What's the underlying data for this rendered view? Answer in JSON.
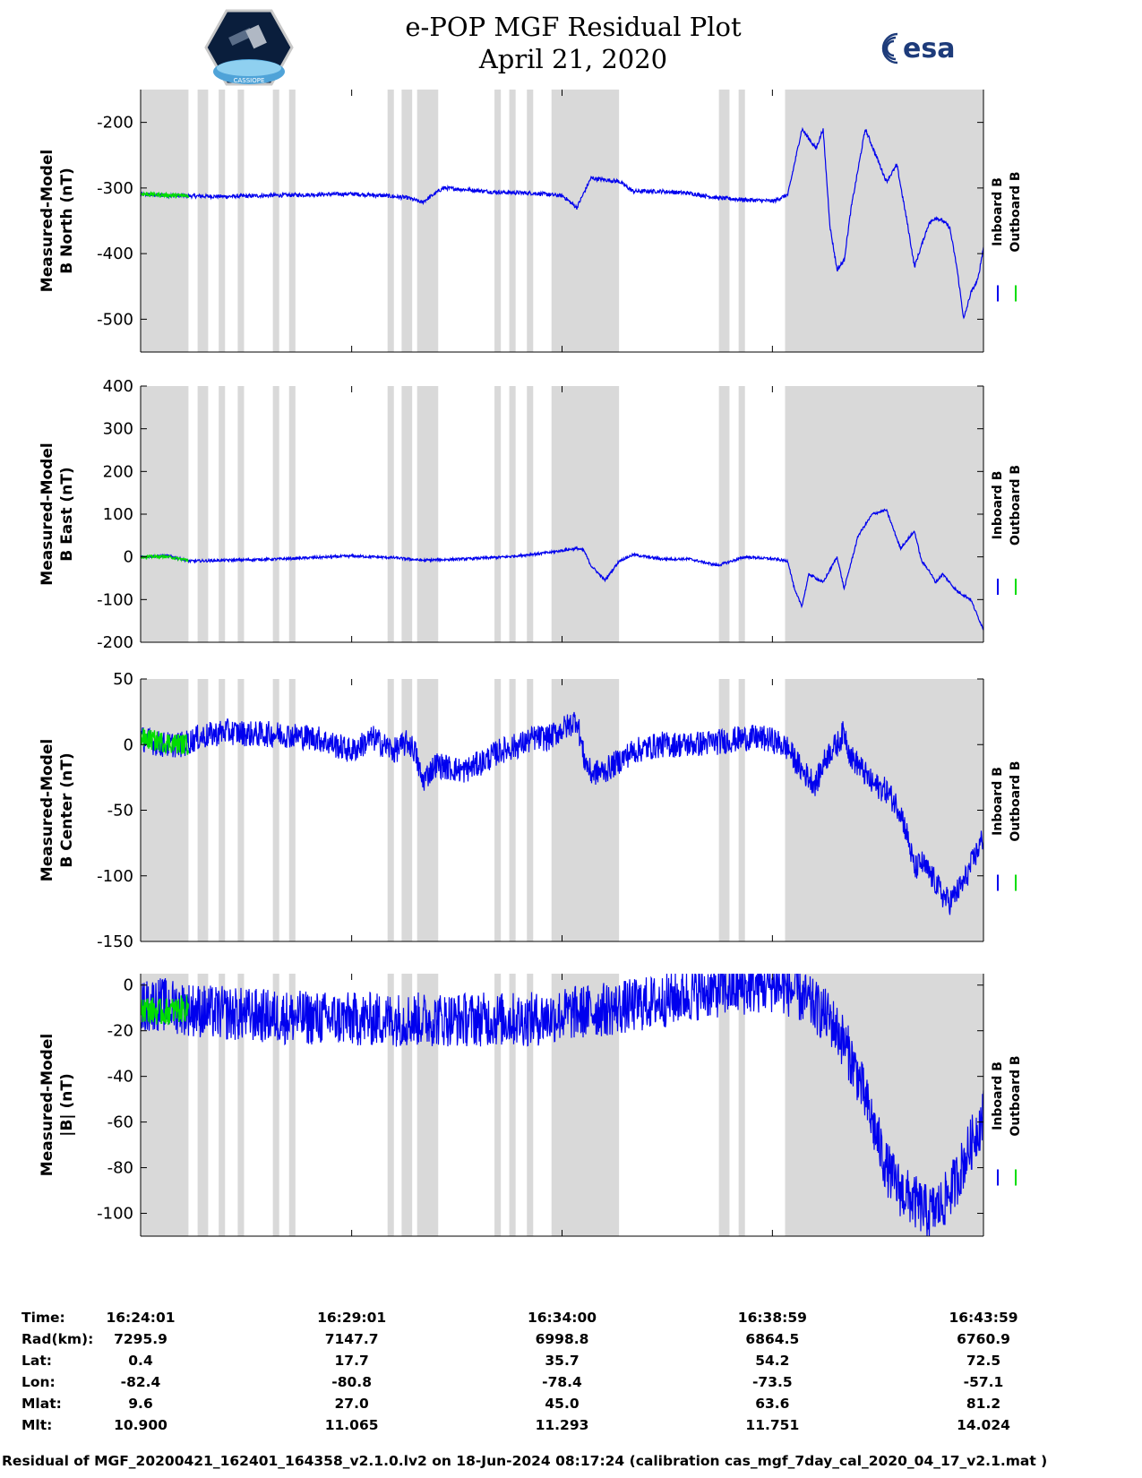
{
  "header": {
    "title_line1": "e-POP MGF Residual Plot",
    "title_line2": "April 21, 2020",
    "logo_left": "CASSIOPE",
    "logo_right": "esa"
  },
  "colors": {
    "inboard": "#0000ee",
    "outboard": "#00dd00",
    "shading": "#d9d9d9",
    "axis": "#000000"
  },
  "legend": {
    "inboard": "Inboard B",
    "outboard": "Outboard B"
  },
  "time_axis": {
    "start_s": 0,
    "end_s": 1198,
    "tick_times_s": [
      0,
      300,
      599,
      898,
      1198
    ]
  },
  "shaded_intervals_s": [
    [
      0,
      68
    ],
    [
      81,
      96
    ],
    [
      111,
      120
    ],
    [
      138,
      147
    ],
    [
      188,
      197
    ],
    [
      211,
      220
    ],
    [
      351,
      360
    ],
    [
      371,
      386
    ],
    [
      393,
      423
    ],
    [
      503,
      512
    ],
    [
      524,
      533
    ],
    [
      549,
      558
    ],
    [
      584,
      680
    ],
    [
      822,
      837
    ],
    [
      850,
      859
    ],
    [
      916,
      1198
    ]
  ],
  "chart_data": [
    {
      "type": "line",
      "ylabel_line1": "Measured-Model",
      "ylabel_line2": "B North (nT)",
      "ylim": [
        -550,
        -150
      ],
      "yticks": [
        -200,
        -300,
        -400,
        -500
      ],
      "ytick_labels": [
        "-200",
        "-300",
        "-400",
        "-500"
      ],
      "series": [
        {
          "name": "Inboard B",
          "noise": 3,
          "x": [
            0,
            60,
            120,
            200,
            300,
            350,
            380,
            400,
            430,
            470,
            500,
            560,
            600,
            620,
            640,
            680,
            700,
            740,
            780,
            820,
            860,
            900,
            920,
            930,
            940,
            960,
            970,
            980,
            990,
            1000,
            1010,
            1030,
            1045,
            1060,
            1075,
            1090,
            1100,
            1120,
            1130,
            1140,
            1150,
            1160,
            1170,
            1180,
            1190,
            1198
          ],
          "y": [
            -310,
            -312,
            -313,
            -311,
            -309,
            -312,
            -315,
            -322,
            -300,
            -303,
            -306,
            -308,
            -312,
            -330,
            -285,
            -290,
            -305,
            -305,
            -308,
            -315,
            -318,
            -320,
            -310,
            -260,
            -210,
            -240,
            -210,
            -360,
            -425,
            -410,
            -330,
            -210,
            -250,
            -290,
            -265,
            -355,
            -420,
            -355,
            -345,
            -350,
            -360,
            -420,
            -500,
            -460,
            -440,
            -390
          ]
        },
        {
          "name": "Outboard B",
          "noise": 3,
          "x": [
            0,
            40,
            68
          ],
          "y": [
            -309,
            -311,
            -312
          ]
        }
      ]
    },
    {
      "type": "line",
      "ylabel_line1": "Measured-Model",
      "ylabel_line2": "B East (nT)",
      "ylim": [
        -200,
        400
      ],
      "yticks": [
        400,
        300,
        200,
        100,
        0,
        -100,
        -200
      ],
      "ytick_labels": [
        "400",
        "300",
        "200",
        "100",
        "0",
        "-100",
        "-200"
      ],
      "series": [
        {
          "name": "Inboard B",
          "noise": 3,
          "x": [
            0,
            40,
            70,
            120,
            200,
            300,
            360,
            400,
            460,
            520,
            580,
            600,
            620,
            630,
            640,
            660,
            680,
            700,
            740,
            780,
            820,
            860,
            900,
            920,
            930,
            940,
            950,
            970,
            990,
            1000,
            1020,
            1040,
            1060,
            1080,
            1090,
            1100,
            1110,
            1120,
            1130,
            1140,
            1160,
            1180,
            1190,
            1198
          ],
          "y": [
            0,
            2,
            -10,
            -8,
            -5,
            2,
            -2,
            -8,
            -5,
            0,
            10,
            15,
            20,
            15,
            -20,
            -55,
            -10,
            5,
            -5,
            -5,
            -20,
            0,
            -5,
            -10,
            -80,
            -115,
            -40,
            -60,
            0,
            -75,
            50,
            100,
            110,
            20,
            40,
            60,
            -10,
            -30,
            -60,
            -40,
            -80,
            -100,
            -140,
            -170
          ]
        },
        {
          "name": "Outboard B",
          "noise": 3,
          "x": [
            0,
            35,
            68
          ],
          "y": [
            0,
            1,
            -8
          ]
        }
      ]
    },
    {
      "type": "line",
      "ylabel_line1": "Measured-Model",
      "ylabel_line2": "B Center (nT)",
      "ylim": [
        -150,
        50
      ],
      "yticks": [
        50,
        0,
        -50,
        -100,
        -150
      ],
      "ytick_labels": [
        "50",
        "0",
        "-50",
        "-100",
        "-150"
      ],
      "series": [
        {
          "name": "Inboard B",
          "noise": 10,
          "x": [
            0,
            30,
            60,
            80,
            120,
            160,
            200,
            250,
            300,
            330,
            360,
            380,
            390,
            400,
            420,
            440,
            460,
            490,
            510,
            540,
            560,
            580,
            600,
            610,
            620,
            630,
            640,
            660,
            700,
            740,
            780,
            820,
            860,
            880,
            900,
            920,
            940,
            960,
            970,
            980,
            990,
            1000,
            1010,
            1020,
            1040,
            1060,
            1080,
            1090,
            1100,
            1110,
            1130,
            1140,
            1150,
            1170,
            1190,
            1198
          ],
          "y": [
            5,
            0,
            0,
            5,
            10,
            8,
            8,
            5,
            -5,
            5,
            -5,
            2,
            -5,
            -28,
            -15,
            -18,
            -20,
            -12,
            -5,
            0,
            5,
            5,
            12,
            15,
            20,
            -10,
            -22,
            -20,
            -5,
            0,
            0,
            2,
            5,
            5,
            3,
            -3,
            -20,
            -30,
            -15,
            -5,
            0,
            10,
            -10,
            -15,
            -30,
            -35,
            -50,
            -70,
            -95,
            -90,
            -105,
            -115,
            -120,
            -105,
            -80,
            -70
          ]
        },
        {
          "name": "Outboard B",
          "noise": 8,
          "x": [
            0,
            30,
            68
          ],
          "y": [
            5,
            2,
            0
          ]
        }
      ]
    },
    {
      "type": "line",
      "ylabel_line1": "Measured-Model",
      "ylabel_line2": "|B| (nT)",
      "ylim": [
        -110,
        5
      ],
      "yticks": [
        0,
        -20,
        -40,
        -60,
        -80,
        -100
      ],
      "ytick_labels": [
        "0",
        "-20",
        "-40",
        "-60",
        "-80",
        "-100"
      ],
      "series": [
        {
          "name": "Inboard B",
          "noise": 12,
          "x": [
            0,
            20,
            60,
            100,
            200,
            300,
            400,
            480,
            560,
            620,
            680,
            740,
            800,
            840,
            900,
            930,
            960,
            980,
            1000,
            1020,
            1040,
            1060,
            1080,
            1100,
            1120,
            1140,
            1160,
            1180,
            1198
          ],
          "y": [
            -10,
            -8,
            -10,
            -12,
            -14,
            -15,
            -15,
            -15,
            -15,
            -12,
            -10,
            -7,
            -3,
            -2,
            0,
            -3,
            -10,
            -15,
            -25,
            -40,
            -60,
            -80,
            -90,
            -95,
            -100,
            -96,
            -85,
            -70,
            -57
          ]
        },
        {
          "name": "Outboard B",
          "noise": 6,
          "x": [
            0,
            30,
            68
          ],
          "y": [
            -10,
            -12,
            -10
          ]
        }
      ]
    }
  ],
  "footer": {
    "rows": [
      {
        "label": "Time:",
        "values": [
          "16:24:01",
          "16:29:01",
          "16:34:00",
          "16:38:59",
          "16:43:59"
        ]
      },
      {
        "label": "Rad(km):",
        "values": [
          "7295.9",
          "7147.7",
          "6998.8",
          "6864.5",
          "6760.9"
        ]
      },
      {
        "label": "Lat:",
        "values": [
          "0.4",
          "17.7",
          "35.7",
          "54.2",
          "72.5"
        ]
      },
      {
        "label": "Lon:",
        "values": [
          "-82.4",
          "-80.8",
          "-78.4",
          "-73.5",
          "-57.1"
        ]
      },
      {
        "label": "Mlat:",
        "values": [
          "9.6",
          "27.0",
          "45.0",
          "63.6",
          "81.2"
        ]
      },
      {
        "label": "Mlt:",
        "values": [
          "10.900",
          "11.065",
          "11.293",
          "11.751",
          "14.024"
        ]
      }
    ],
    "caption": "Residual of MGF_20200421_162401_164358_v2.1.0.lv2 on 18-Jun-2024 08:17:24 (calibration cas_mgf_7day_cal_2020_04_17_v2.1.mat )"
  }
}
